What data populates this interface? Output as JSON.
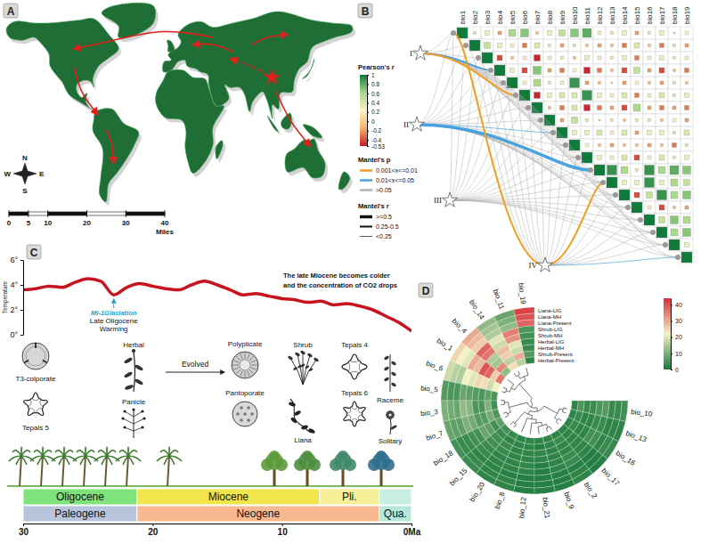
{
  "chart_data": [
    {
      "type": "map",
      "panel": "A",
      "compass": [
        "N",
        "W",
        "E",
        "S"
      ],
      "scale_ticks": [
        0,
        5,
        10,
        20,
        30,
        40
      ],
      "scale_unit": "Miles"
    },
    {
      "type": "mantel",
      "panel": "B",
      "variables": [
        "bio1",
        "bio2",
        "bio3",
        "bio4",
        "bio5",
        "bio6",
        "bio7",
        "bio8",
        "bio9",
        "bio10",
        "bio11",
        "bio12",
        "bio13",
        "bio14",
        "bio15",
        "bio16",
        "bio17",
        "bio18",
        "bio19"
      ],
      "matrix": [
        [
          1,
          0.1,
          0.3,
          -0.2,
          0.6,
          0.7,
          -0.1,
          0.3,
          0.5,
          0.7,
          0.8,
          0.2,
          0.1,
          0.3,
          -0.2,
          0.1,
          0.3,
          0,
          0.2
        ],
        [
          1,
          0.5,
          0.3,
          0.2,
          -0.3,
          0.4,
          0.1,
          -0.2,
          0.1,
          -0.1,
          -0.2,
          -0.1,
          -0.3,
          0.4,
          -0.1,
          -0.3,
          0.1,
          -0.2
        ],
        [
          1,
          -0.4,
          -0.1,
          0.2,
          -0.5,
          0.2,
          0.1,
          -0.1,
          0.3,
          0.2,
          0.1,
          0.3,
          -0.3,
          0.2,
          0.3,
          0.1,
          0.2
        ],
        [
          1,
          0.3,
          -0.4,
          0.7,
          -0.2,
          -0.3,
          0.2,
          -0.5,
          -0.3,
          -0.1,
          -0.4,
          0.5,
          -0.2,
          -0.4,
          -0.1,
          -0.3
        ],
        [
          1,
          0.2,
          0.6,
          0.1,
          0.2,
          0.9,
          -0.2,
          -0.1,
          0,
          -0.2,
          0.2,
          -0.1,
          -0.2,
          0.1,
          -0.1
        ],
        [
          1,
          -0.5,
          0.3,
          0.4,
          0.4,
          0.9,
          0.3,
          0.2,
          0.4,
          -0.3,
          0.2,
          0.4,
          0.1,
          0.3
        ],
        [
          1,
          -0.1,
          -0.3,
          0.4,
          -0.5,
          -0.3,
          -0.2,
          -0.4,
          0.6,
          -0.2,
          -0.3,
          -0.2,
          -0.3
        ],
        [
          1,
          -0.2,
          0.5,
          0.1,
          0,
          0.1,
          -0.1,
          0.1,
          0.1,
          -0.1,
          0.2,
          -0.2
        ],
        [
          1,
          0.3,
          0.3,
          0.4,
          0.2,
          0.4,
          -0.2,
          0.3,
          0.3,
          0.1,
          0.4
        ],
        [
          1,
          0.2,
          -0.1,
          -0.2,
          -0.1,
          -0.1,
          -0.2,
          -0.1,
          -0.3,
          0.1
        ],
        [
          1,
          0.3,
          0.2,
          0.4,
          -0.4,
          0.2,
          0.4,
          0.1,
          0.3
        ],
        [
          1,
          0.9,
          0.6,
          0.1,
          0.9,
          0.6,
          0.8,
          0.7
        ],
        [
          1,
          0.3,
          0.3,
          0.9,
          0.3,
          0.6,
          0.5
        ],
        [
          1,
          -0.4,
          0.5,
          0.9,
          0.6,
          0.7
        ],
        [
          1,
          0.2,
          -0.4,
          -0.1,
          -0.2
        ],
        [
          1,
          0.5,
          0.7,
          0.6
        ],
        [
          1,
          0.6,
          0.7
        ],
        [
          1,
          0.3
        ],
        [
          1
        ]
      ],
      "colorbar": {
        "title": "Pearson's r",
        "range": [
          -0.53,
          1
        ],
        "ticks": [
          1,
          0.8,
          0.6,
          0.4,
          0.2,
          0,
          -0.2,
          -0.4,
          -0.53
        ],
        "colors": [
          "#c51b2a",
          "#f6b26b",
          "#fdf3c8",
          "#a8d98a",
          "#0f7a3a"
        ]
      },
      "p_legend": {
        "title": "Mantel's p",
        "labels": [
          "0.001<x<=0.01",
          "0.01<x<=0.05",
          ">0.05"
        ],
        "colors": [
          "#f29f1f",
          "#4aa3df",
          "#b3b3b3"
        ]
      },
      "r_legend": {
        "title": "Mantel's r",
        "labels": [
          ">=0.5",
          "0.25-0.5",
          "<0.25"
        ]
      },
      "groups": [
        {
          "name": "I",
          "p": [
            2,
            2,
            2,
            1,
            2,
            0,
            2,
            2,
            2,
            2,
            2,
            2,
            2,
            2,
            2,
            2,
            2,
            2,
            2
          ],
          "r": [
            2,
            2,
            2,
            1,
            2,
            1,
            2,
            2,
            2,
            2,
            2,
            2,
            2,
            2,
            2,
            2,
            2,
            2,
            2
          ]
        },
        {
          "name": "II",
          "p": [
            2,
            2,
            2,
            2,
            2,
            2,
            2,
            2,
            1,
            2,
            2,
            1,
            2,
            2,
            2,
            2,
            2,
            2,
            2
          ],
          "r": [
            2,
            2,
            2,
            2,
            2,
            2,
            2,
            2,
            2,
            2,
            2,
            0,
            2,
            2,
            2,
            2,
            2,
            2,
            2
          ]
        },
        {
          "name": "III",
          "p": [
            2,
            2,
            2,
            2,
            2,
            2,
            2,
            2,
            2,
            2,
            2,
            2,
            2,
            2,
            2,
            2,
            2,
            2,
            2
          ],
          "r": [
            2,
            2,
            2,
            2,
            2,
            2,
            2,
            2,
            2,
            2,
            2,
            2,
            2,
            2,
            2,
            2,
            2,
            2,
            2
          ]
        },
        {
          "name": "IV",
          "p": [
            0,
            2,
            2,
            2,
            2,
            2,
            2,
            2,
            2,
            2,
            2,
            2,
            0,
            2,
            2,
            2,
            2,
            2,
            1
          ],
          "r": [
            1,
            2,
            2,
            2,
            2,
            2,
            2,
            2,
            2,
            2,
            2,
            2,
            1,
            2,
            2,
            2,
            2,
            2,
            2
          ]
        }
      ]
    },
    {
      "type": "timeline",
      "panel": "C",
      "y_label": "Temperature",
      "x": [
        30,
        29,
        28,
        27,
        26,
        25,
        24,
        23,
        22,
        21,
        20,
        19,
        18,
        17,
        16,
        15,
        14,
        13,
        12,
        11,
        10,
        9,
        8,
        7,
        6,
        5,
        4,
        3,
        2,
        1,
        0
      ],
      "values": [
        3.6,
        3.7,
        3.9,
        3.8,
        4.2,
        4.5,
        4.3,
        3.2,
        3.8,
        4.1,
        3.9,
        3.7,
        3.6,
        4.0,
        4.3,
        4.0,
        3.6,
        3.2,
        3.3,
        3.1,
        2.9,
        2.8,
        2.6,
        2.7,
        2.4,
        2.5,
        2.3,
        2.0,
        1.5,
        1.0,
        0.3
      ],
      "color": "#c8141e",
      "xlim": [
        30,
        0
      ],
      "xticks": [
        30,
        20,
        10,
        {
          "value": 0,
          "label": "0Ma"
        }
      ],
      "ylim": [
        0,
        6
      ],
      "yticks": [
        {
          "value": 0,
          "label": "0°"
        },
        {
          "value": 2,
          "label": "2°"
        },
        {
          "value": 4,
          "label": "4°"
        },
        {
          "value": 6,
          "label": "6°"
        }
      ],
      "annotations": {
        "glaciation": "Mi-1Glaciation",
        "oligocene": "Late Oligocene",
        "warming": "Warming",
        "miocene_1": "The late Miocene becomes colder",
        "miocene_2": "and the concentration of CO2 drops",
        "evolved": "Evolved"
      },
      "traits": [
        "T3-colporate",
        "Herbal",
        "Tepals 5",
        "Panicle",
        "Polyplicate",
        "Shrub",
        "Tepals 4",
        "Raceme",
        "Pantoporate",
        "Liana",
        "Tepals 6",
        "Solitary"
      ],
      "epochs": [
        {
          "name": "Oligocene",
          "start": 30,
          "end": 21.2,
          "color": "#80e27a"
        },
        {
          "name": "Miocene",
          "start": 21.2,
          "end": 7.1,
          "color": "#f2e54c"
        },
        {
          "name": "Pli.",
          "start": 7.1,
          "end": 2.5,
          "color": "#f6ef9a"
        },
        {
          "name": null,
          "start": 2.5,
          "end": 0,
          "color": "#c8efe2"
        }
      ],
      "periods": [
        {
          "name": "Paleogene",
          "start": 30,
          "end": 21.2,
          "color": "#b8c3dc"
        },
        {
          "name": "Neogene",
          "start": 21.2,
          "end": 2.5,
          "color": "#f8b98f"
        },
        {
          "name": "Qua.",
          "start": 2.5,
          "end": 0,
          "color": "#b5e8d8"
        }
      ]
    },
    {
      "type": "circular_heatmap",
      "panel": "D",
      "sectors": [
        "bio_19",
        "bio_11",
        "bio_14",
        "bio_4",
        "bio_1",
        "bio_6",
        "bio_5",
        "bio_3",
        "bio_7",
        "bio_18",
        "bio_15",
        "bio_20",
        "bio_8",
        "bio_12",
        "bio_21",
        "bio_9",
        "bio_2",
        "bio_17",
        "bio_16",
        "bio_13",
        "bio_10"
      ],
      "rings": [
        "Liana-LIG",
        "Liana-MH",
        "Liana-Present",
        "Shrub-LIG",
        "Shrub-MH",
        "Herbal-LIG",
        "Herbal-MH",
        "Shrub-Present",
        "Herbal-Present"
      ],
      "values": [
        [
          42,
          8,
          12,
          30,
          25,
          18,
          6,
          10,
          8,
          4,
          3,
          2,
          2,
          1,
          1,
          1,
          2,
          1,
          3,
          2,
          4
        ],
        [
          40,
          10,
          14,
          28,
          22,
          16,
          5,
          9,
          7,
          3,
          3,
          2,
          2,
          1,
          1,
          1,
          2,
          1,
          3,
          2,
          3
        ],
        [
          38,
          12,
          15,
          26,
          20,
          15,
          5,
          8,
          7,
          3,
          2,
          2,
          1,
          1,
          1,
          1,
          1,
          1,
          2,
          2,
          3
        ],
        [
          5,
          35,
          20,
          38,
          30,
          22,
          8,
          12,
          10,
          4,
          3,
          2,
          2,
          2,
          1,
          2,
          3,
          2,
          4,
          3,
          6
        ],
        [
          4,
          33,
          18,
          36,
          28,
          20,
          7,
          11,
          9,
          4,
          3,
          2,
          2,
          2,
          1,
          2,
          3,
          2,
          4,
          3,
          5
        ],
        [
          3,
          20,
          28,
          15,
          40,
          25,
          6,
          5,
          6,
          8,
          4,
          3,
          2,
          2,
          2,
          2,
          2,
          2,
          2,
          2,
          3
        ],
        [
          3,
          18,
          26,
          14,
          38,
          24,
          5,
          5,
          6,
          7,
          4,
          3,
          2,
          2,
          2,
          2,
          2,
          2,
          2,
          2,
          3
        ],
        [
          6,
          30,
          16,
          34,
          26,
          18,
          7,
          10,
          9,
          4,
          3,
          2,
          2,
          2,
          1,
          2,
          3,
          2,
          3,
          3,
          5
        ],
        [
          2,
          16,
          24,
          12,
          36,
          22,
          5,
          4,
          5,
          7,
          4,
          3,
          2,
          2,
          2,
          2,
          2,
          2,
          2,
          2,
          2
        ]
      ],
      "colorbar": {
        "range": [
          0,
          44
        ],
        "ticks": [
          0,
          10,
          20,
          30,
          40
        ],
        "colors": [
          "#1b7a3c",
          "#f4f1c4",
          "#d7303a"
        ]
      },
      "tree": [
        [
          [
            0,
            [
              1,
              2
            ]
          ],
          [
            3,
            [
              4,
              5
            ]
          ]
        ],
        [
          [
            [
              6,
              7
            ],
            [
              8,
              9
            ]
          ],
          [
            [
              [
                10,
                11
              ],
              [
                12,
                [
                  13,
                  [
                    14,
                    [
                      15,
                      16
                    ]
                  ]
                ]
              ]
            ],
            [
              [
                17,
                18
              ],
              [
                19,
                20
              ]
            ]
          ]
        ]
      ]
    }
  ]
}
